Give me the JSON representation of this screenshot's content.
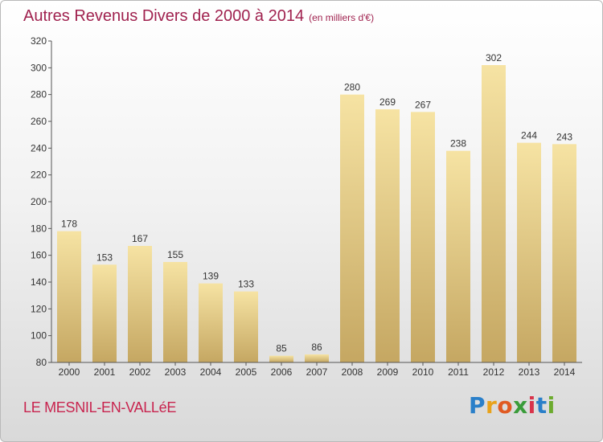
{
  "title": "Autres Revenus Divers de 2000 à 2014",
  "subtitle": "(en milliers d'€)",
  "commune": "LE MESNIL-EN-VALLéE",
  "logo": {
    "letters": [
      "P",
      "r",
      "o",
      "x",
      "i",
      "t",
      "i"
    ],
    "colors": [
      "#2a7fc9",
      "#e8a21a",
      "#e05a22",
      "#3a9c3a",
      "#d9334a",
      "#2a7fc9",
      "#6cab2e"
    ]
  },
  "colors": {
    "bar_top": "#f6e3a3",
    "bar_bottom": "#c5a762",
    "axis": "#555555",
    "title": "#a0224f"
  },
  "chart_data": {
    "type": "bar",
    "categories": [
      "2000",
      "2001",
      "2002",
      "2003",
      "2004",
      "2005",
      "2006",
      "2007",
      "2008",
      "2009",
      "2010",
      "2011",
      "2012",
      "2013",
      "2014"
    ],
    "values": [
      178,
      153,
      167,
      155,
      139,
      133,
      85,
      86,
      280,
      269,
      267,
      238,
      302,
      244,
      243
    ],
    "title": "Autres Revenus Divers de 2000 à 2014",
    "subtitle": "(en milliers d'€)",
    "xlabel": "",
    "ylabel": "",
    "ylim": [
      80,
      320
    ],
    "yticks": [
      80,
      100,
      120,
      140,
      160,
      180,
      200,
      220,
      240,
      260,
      280,
      300,
      320
    ],
    "grid": false,
    "data_labels": true
  }
}
